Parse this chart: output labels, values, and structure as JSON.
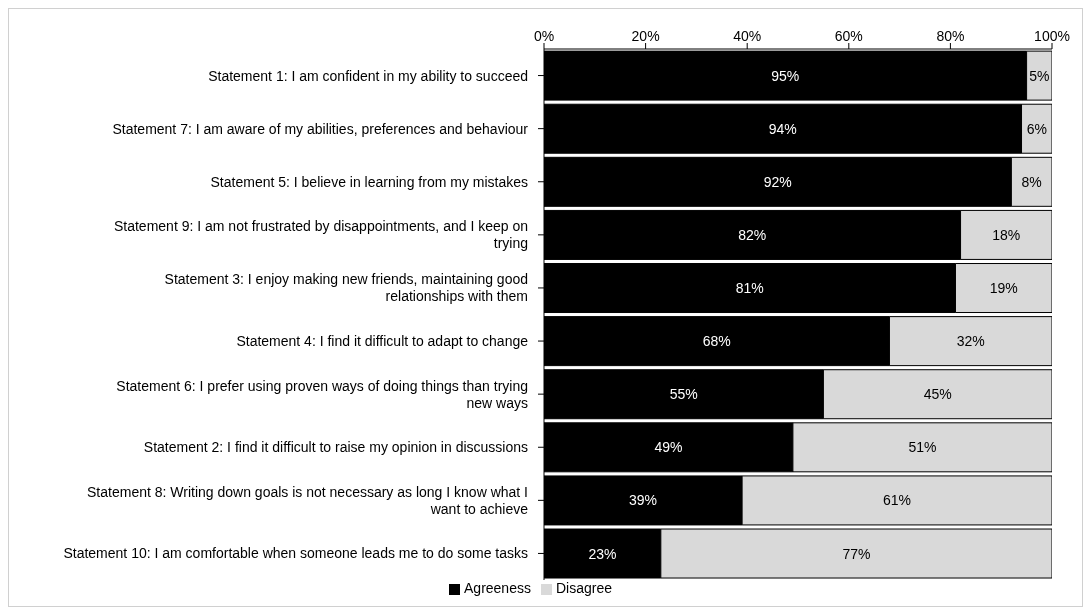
{
  "chart_data": {
    "type": "bar",
    "orientation": "horizontal",
    "stacked": true,
    "categories": [
      "Statement 1: I am confident in my ability to succeed",
      "Statement 7: I am aware of my abilities, preferences and behaviour",
      "Statement 5: I believe in learning from my mistakes",
      "Statement 9: I am not frustrated by disappointments, and I keep on trying",
      "Statement 3: I enjoy making new friends, maintaining good relationships with them",
      "Statement 4: I find it difficult to adapt to change",
      "Statement 6: I prefer using proven ways of doing things than trying new ways",
      "Statement 2: I find it difficult to raise my opinion in discussions",
      "Statement 8: Writing down goals is not necessary as long I know what I want to achieve",
      "Statement 10: I am comfortable when someone leads me to do some tasks"
    ],
    "series": [
      {
        "name": "Agreeness",
        "color": "#000000",
        "values": [
          95,
          94,
          92,
          82,
          81,
          68,
          55,
          49,
          39,
          23
        ],
        "value_labels": [
          "95%",
          "94%",
          "92%",
          "82%",
          "81%",
          "68%",
          "55%",
          "49%",
          "39%",
          "23%"
        ]
      },
      {
        "name": "Disagree",
        "color": "#d9d9d9",
        "values": [
          5,
          6,
          8,
          18,
          19,
          32,
          45,
          51,
          61,
          77
        ],
        "value_labels": [
          "5%",
          "6%",
          "8%",
          "18%",
          "19%",
          "32%",
          "45%",
          "51%",
          "61%",
          "77%"
        ]
      }
    ],
    "xlim": [
      0,
      100
    ],
    "xticks": [
      {
        "value": 0,
        "label": "0%"
      },
      {
        "value": 20,
        "label": "20%"
      },
      {
        "value": 40,
        "label": "40%"
      },
      {
        "value": 60,
        "label": "60%"
      },
      {
        "value": 80,
        "label": "80%"
      },
      {
        "value": 100,
        "label": "100%"
      }
    ],
    "grid": false,
    "legend": "bottom"
  }
}
